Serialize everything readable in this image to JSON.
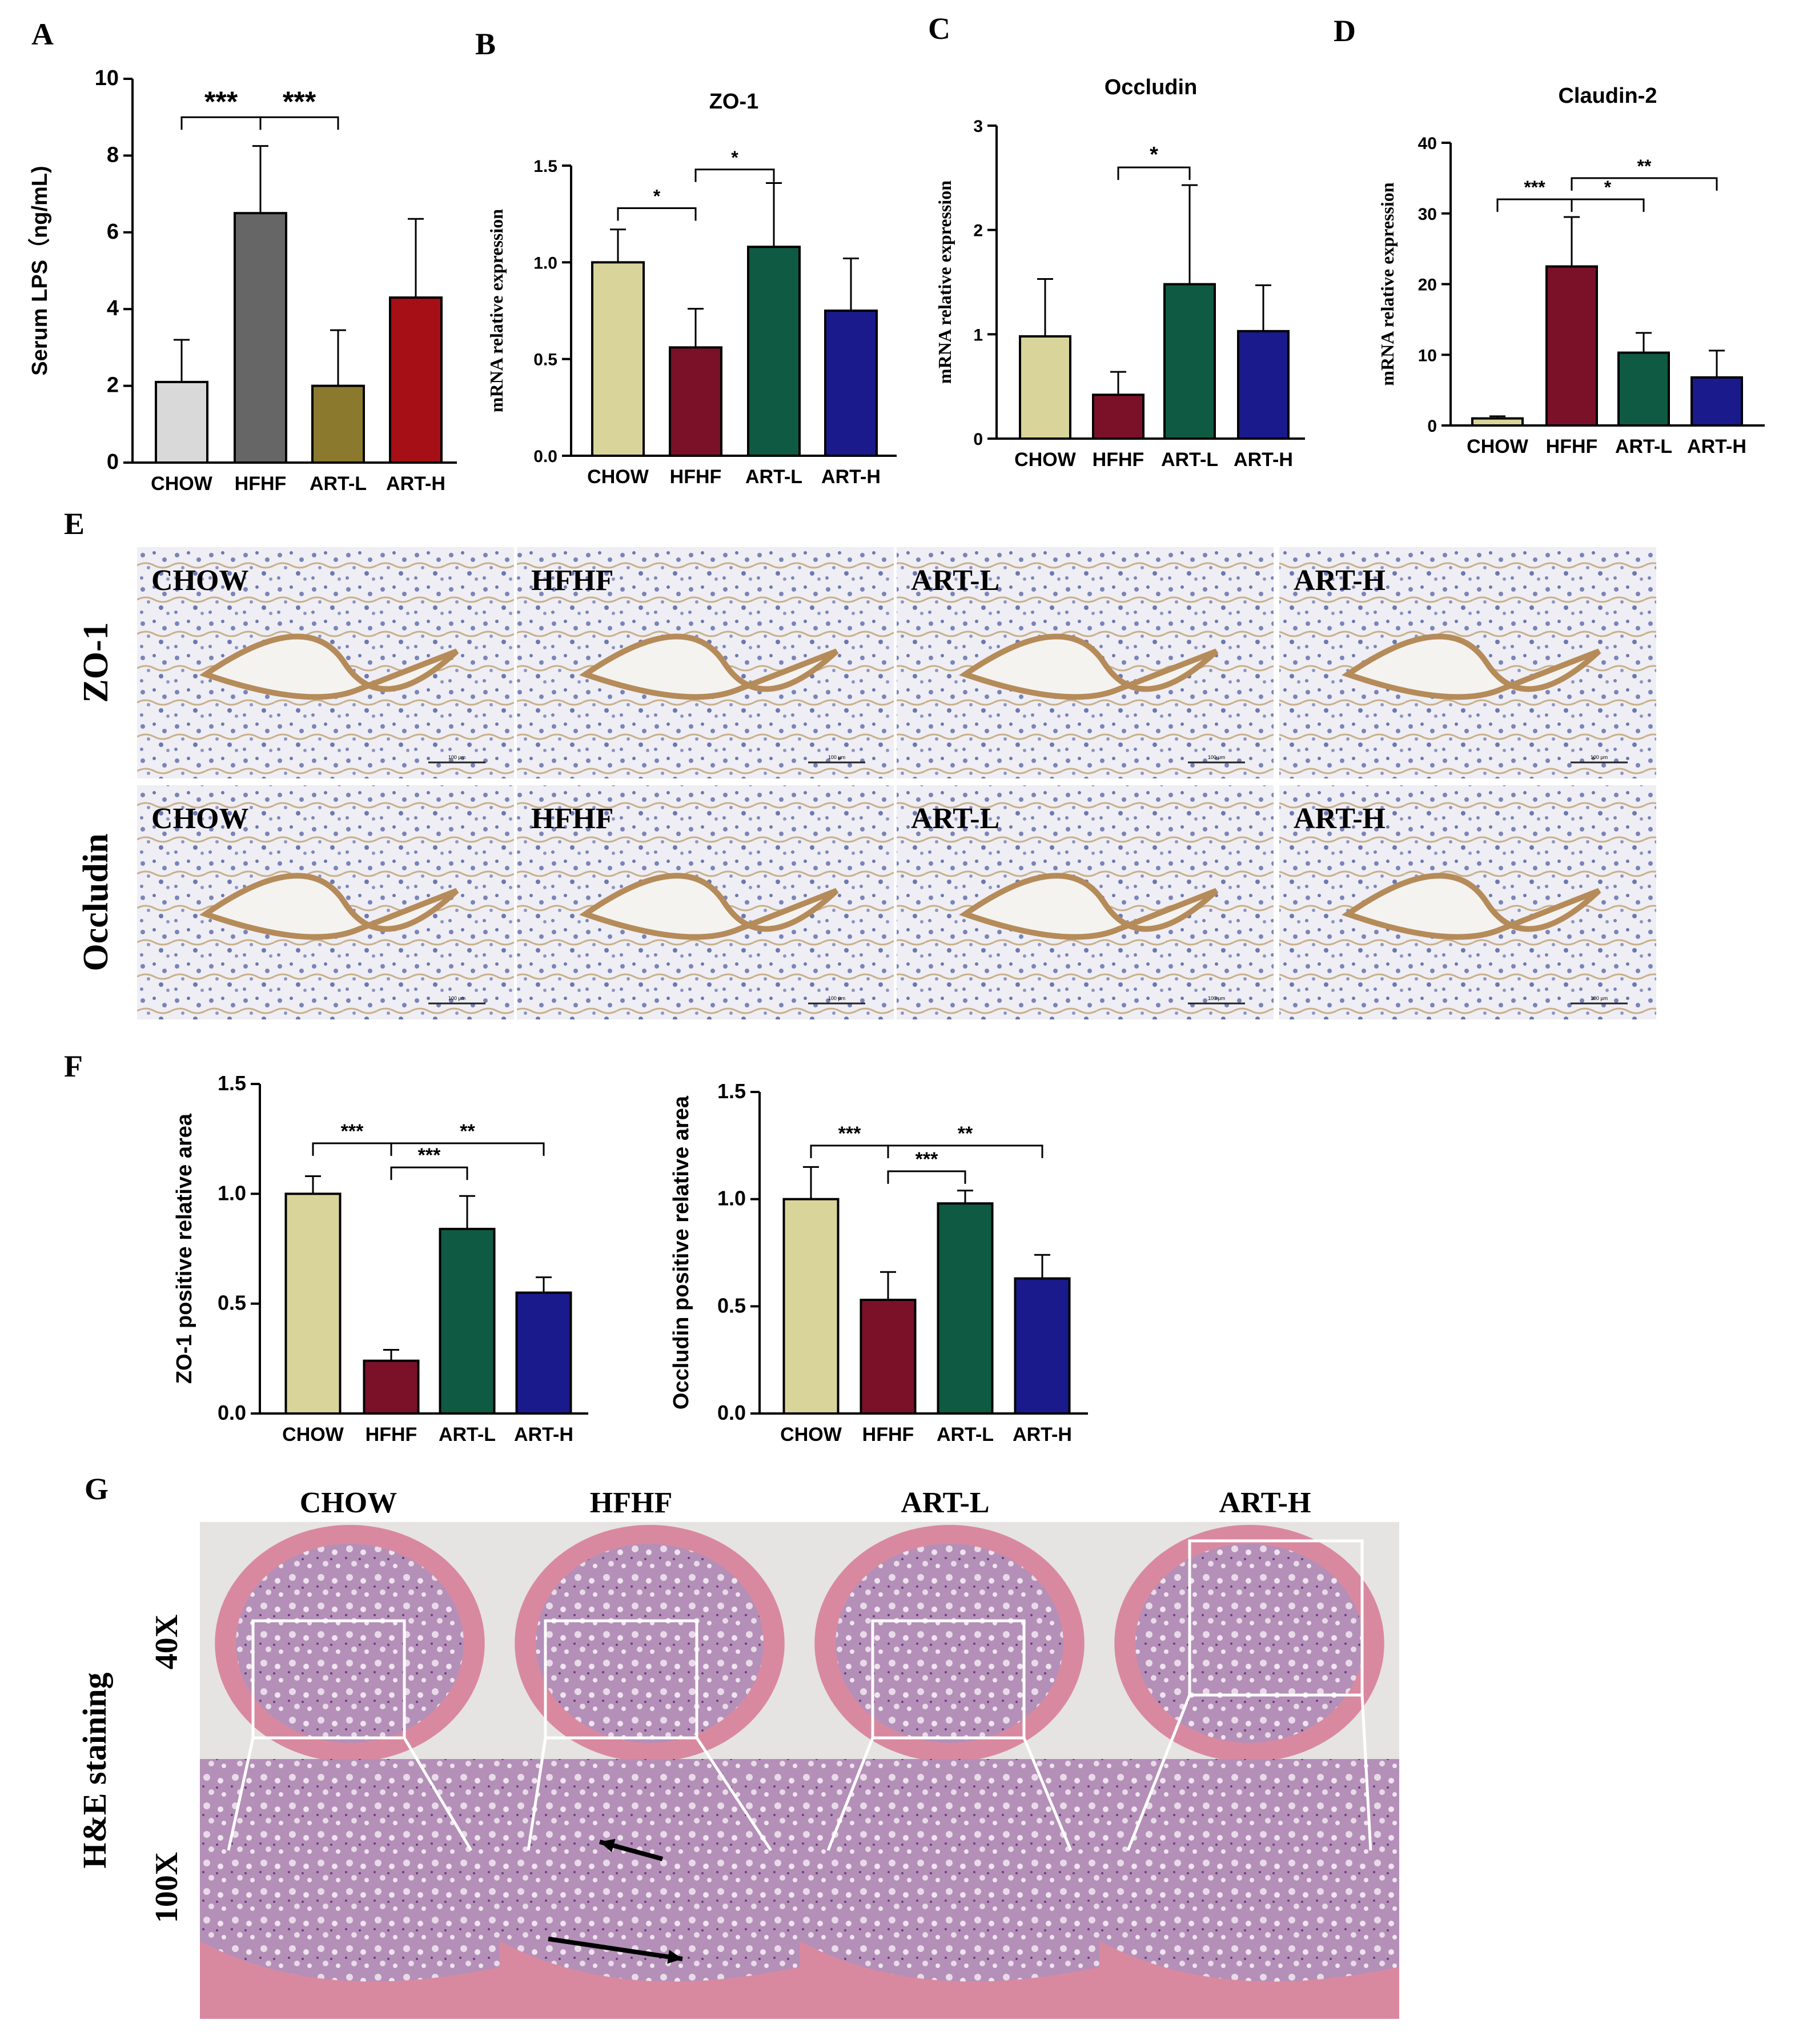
{
  "panel_labels": [
    "A",
    "B",
    "C",
    "D",
    "E",
    "F",
    "G"
  ],
  "groups": [
    "CHOW",
    "HFHF",
    "ART-L",
    "ART-H"
  ],
  "colors": {
    "A": [
      "#d9d9d9",
      "#666666",
      "#8b7a2e",
      "#a50f15"
    ],
    "tj": [
      "#d9d59a",
      "#7b1128",
      "#0f5a43",
      "#1a1a8c"
    ],
    "tissue_brown": "#b58b5a",
    "tissue_blue": "#7a84b8",
    "he_pink": "#d9899f",
    "he_purple": "#8a5a9a"
  },
  "chart_data": [
    {
      "id": "A",
      "type": "bar",
      "title": "",
      "xlabel": "",
      "ylabel": "Serum LPS（ng/mL)",
      "categories": [
        "CHOW",
        "HFHF",
        "ART-L",
        "ART-H"
      ],
      "values": [
        2.1,
        6.5,
        2.0,
        4.3
      ],
      "errors": [
        1.1,
        1.75,
        1.45,
        2.05
      ],
      "ylim": [
        0,
        10
      ],
      "yticks": [
        "0",
        "2",
        "4",
        "6",
        "8",
        "10"
      ],
      "significance": [
        {
          "from": 0,
          "to": 1,
          "label": "***",
          "level": 9.0
        },
        {
          "from": 1,
          "to": 2,
          "label": "***",
          "level": 9.0
        }
      ]
    },
    {
      "id": "B",
      "type": "bar",
      "title": "ZO-1",
      "xlabel": "",
      "ylabel": "mRNA relative expression",
      "categories": [
        "CHOW",
        "HFHF",
        "ART-L",
        "ART-H"
      ],
      "values": [
        1.0,
        0.56,
        1.08,
        0.75
      ],
      "errors": [
        0.17,
        0.2,
        0.33,
        0.27
      ],
      "ylim": [
        0,
        1.5
      ],
      "yticks": [
        "0.0",
        "0.5",
        "1.0",
        "1.5"
      ],
      "significance": [
        {
          "from": 0,
          "to": 1,
          "label": "*",
          "level": 1.28
        },
        {
          "from": 1,
          "to": 2,
          "label": "*",
          "level": 1.48
        }
      ]
    },
    {
      "id": "C",
      "type": "bar",
      "title": "Occludin",
      "xlabel": "",
      "ylabel": "mRNA relative expression",
      "categories": [
        "CHOW",
        "HFHF",
        "ART-L",
        "ART-H"
      ],
      "values": [
        0.98,
        0.42,
        1.48,
        1.03
      ],
      "errors": [
        0.55,
        0.22,
        0.95,
        0.44
      ],
      "ylim": [
        0,
        3
      ],
      "yticks": [
        "0",
        "1",
        "2",
        "3"
      ],
      "significance": [
        {
          "from": 1,
          "to": 2,
          "label": "*",
          "level": 2.6
        }
      ]
    },
    {
      "id": "D",
      "type": "bar",
      "title": "Claudin-2",
      "xlabel": "",
      "ylabel": "mRNA relative expression",
      "categories": [
        "CHOW",
        "HFHF",
        "ART-L",
        "ART-H"
      ],
      "values": [
        1.0,
        22.5,
        10.3,
        6.8
      ],
      "errors": [
        0.3,
        7.0,
        2.8,
        3.8
      ],
      "ylim": [
        0,
        40
      ],
      "yticks": [
        "0",
        "10",
        "20",
        "30",
        "40"
      ],
      "significance": [
        {
          "from": 0,
          "to": 1,
          "label": "***",
          "level": 32
        },
        {
          "from": 1,
          "to": 2,
          "label": "*",
          "level": 32
        },
        {
          "from": 1,
          "to": 3,
          "label": "**",
          "level": 35
        }
      ]
    },
    {
      "id": "F1",
      "type": "bar",
      "title": "",
      "xlabel": "",
      "ylabel": "ZO-1 positive relative area",
      "categories": [
        "CHOW",
        "HFHF",
        "ART-L",
        "ART-H"
      ],
      "values": [
        1.0,
        0.24,
        0.84,
        0.55
      ],
      "errors": [
        0.08,
        0.05,
        0.15,
        0.07
      ],
      "ylim": [
        0,
        1.5
      ],
      "yticks": [
        "0.0",
        "0.5",
        "1.0",
        "1.5"
      ],
      "significance": [
        {
          "from": 0,
          "to": 1,
          "label": "***",
          "level": 1.23
        },
        {
          "from": 1,
          "to": 2,
          "label": "***",
          "level": 1.12
        },
        {
          "from": 1,
          "to": 3,
          "label": "**",
          "level": 1.23
        }
      ]
    },
    {
      "id": "F2",
      "type": "bar",
      "title": "",
      "xlabel": "",
      "ylabel": "Occludin positive relative area",
      "categories": [
        "CHOW",
        "HFHF",
        "ART-L",
        "ART-H"
      ],
      "values": [
        1.0,
        0.53,
        0.98,
        0.63
      ],
      "errors": [
        0.15,
        0.13,
        0.06,
        0.11
      ],
      "ylim": [
        0,
        1.5
      ],
      "yticks": [
        "0.0",
        "0.5",
        "1.0",
        "1.5"
      ],
      "significance": [
        {
          "from": 0,
          "to": 1,
          "label": "***",
          "level": 1.25
        },
        {
          "from": 1,
          "to": 2,
          "label": "***",
          "level": 1.13
        },
        {
          "from": 1,
          "to": 3,
          "label": "**",
          "level": 1.25
        }
      ]
    }
  ],
  "panel_E": {
    "rows": [
      "ZO-1",
      "Occludin"
    ],
    "image_labels": [
      [
        "CHOW",
        "HFHF",
        "ART-L",
        "ART-H"
      ],
      [
        "CHOW",
        "HFHF",
        "ART-L",
        "ART-H"
      ]
    ],
    "scale_text": "100 μm"
  },
  "panel_G": {
    "column_titles": [
      "CHOW",
      "HFHF",
      "ART-L",
      "ART-H"
    ],
    "row_labels": [
      "40X",
      "100X"
    ],
    "side_label": "H&E staining"
  }
}
